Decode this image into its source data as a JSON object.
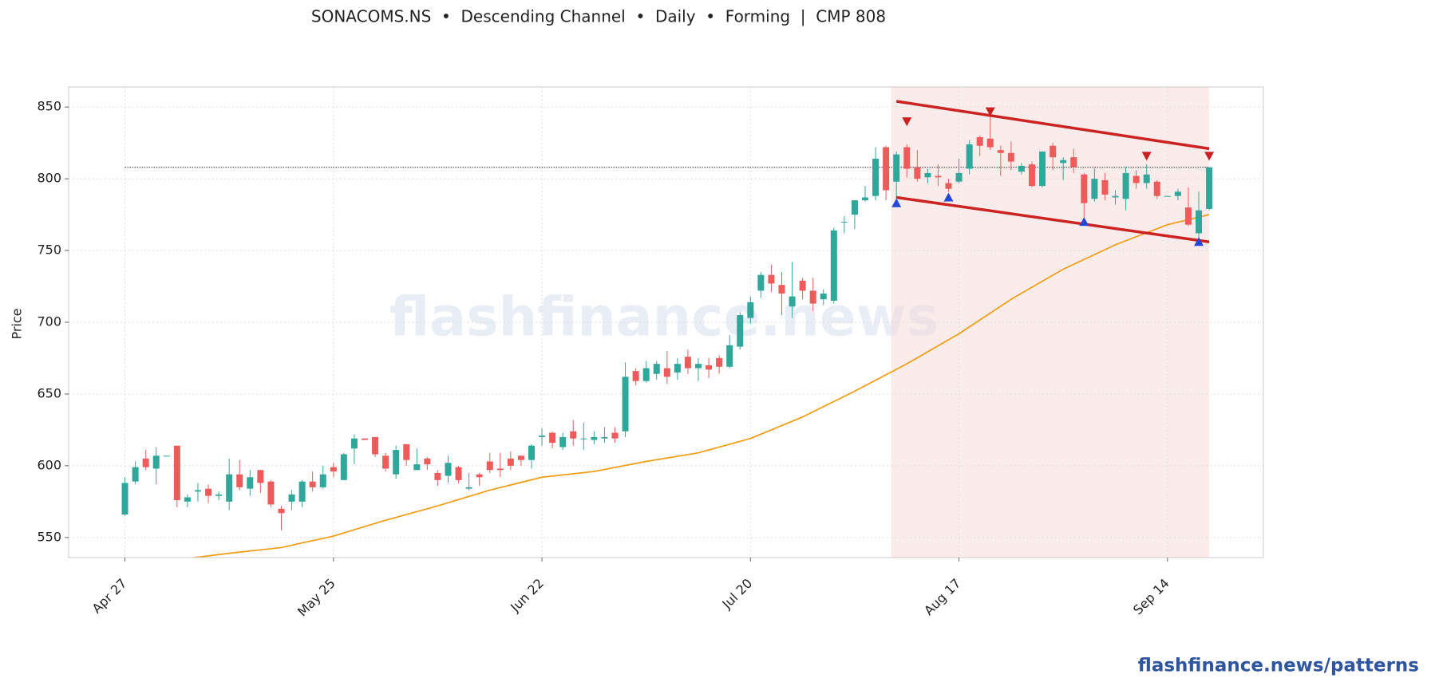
{
  "chart_data": {
    "type": "candlestick",
    "title": "SONACOMS.NS  •  Descending Channel  •  Daily  •  Forming  |  CMP 808",
    "y_label": "Price",
    "watermark": "flashfinance.news",
    "footer": "flashfinance.news/patterns",
    "categories": [
      "Apr 27",
      null,
      null,
      null,
      null,
      null,
      null,
      null,
      null,
      null,
      null,
      null,
      null,
      null,
      null,
      null,
      null,
      null,
      null,
      null,
      "May 25",
      null,
      null,
      null,
      null,
      null,
      null,
      null,
      null,
      null,
      null,
      null,
      null,
      null,
      null,
      null,
      null,
      null,
      null,
      null,
      "Jun 22",
      null,
      null,
      null,
      null,
      null,
      null,
      null,
      null,
      null,
      null,
      null,
      null,
      null,
      null,
      null,
      null,
      null,
      null,
      null,
      "Jul 20",
      null,
      null,
      null,
      null,
      null,
      null,
      null,
      null,
      null,
      null,
      null,
      null,
      null,
      null,
      null,
      null,
      null,
      null,
      null,
      "Aug 17",
      null,
      null,
      null,
      null,
      null,
      null,
      null,
      null,
      null,
      null,
      null,
      null,
      null,
      null,
      null,
      null,
      null,
      null,
      null,
      "Sep 14",
      null,
      null,
      null,
      null
    ],
    "open": [
      566,
      589,
      605,
      598,
      607,
      614,
      575,
      582,
      584,
      579,
      575,
      594,
      584,
      597,
      589,
      570,
      575,
      575,
      589,
      585,
      599,
      590,
      612,
      619,
      620,
      607,
      594,
      615,
      597,
      605,
      595,
      593,
      599,
      584,
      594,
      603,
      598,
      605,
      607,
      604,
      620,
      623,
      613,
      624,
      619,
      618,
      619,
      623,
      624,
      666,
      659,
      664,
      668,
      665,
      676,
      668,
      670,
      675,
      669,
      683,
      703,
      722,
      733,
      726,
      711,
      729,
      722,
      716,
      715,
      770,
      775,
      785,
      788,
      822,
      798,
      822,
      808,
      801,
      802,
      797,
      798,
      807,
      829,
      828,
      820,
      818,
      805,
      810,
      795,
      823,
      811,
      815,
      803,
      786,
      799,
      787,
      786,
      802,
      797,
      798,
      788,
      788,
      780,
      762,
      779
    ],
    "high": [
      592,
      603,
      611,
      613,
      607,
      614,
      580,
      588,
      587,
      582,
      605,
      604,
      597,
      597,
      590,
      572,
      583,
      590,
      596,
      600,
      602,
      609,
      622,
      619,
      620,
      609,
      614,
      615,
      612,
      606,
      597,
      607,
      600,
      595,
      595,
      609,
      609,
      610,
      607,
      615,
      626,
      624,
      623,
      632,
      630,
      624,
      627,
      627,
      672,
      668,
      673,
      673,
      680,
      675,
      681,
      675,
      675,
      677,
      691,
      707,
      718,
      735,
      740,
      735,
      742,
      731,
      731,
      723,
      766,
      774,
      785,
      795,
      822,
      823,
      819,
      824,
      820,
      807,
      810,
      800,
      814,
      827,
      830,
      845,
      823,
      826,
      811,
      812,
      819,
      825,
      815,
      821,
      804,
      807,
      804,
      792,
      808,
      806,
      810,
      799,
      788,
      793,
      794,
      791,
      808
    ],
    "low": [
      565,
      587,
      597,
      587,
      607,
      571,
      571,
      575,
      574,
      576,
      569,
      583,
      579,
      581,
      571,
      555,
      569,
      571,
      582,
      584,
      592,
      590,
      601,
      618,
      606,
      596,
      591,
      600,
      597,
      597,
      586,
      588,
      588,
      583,
      586,
      595,
      592,
      597,
      600,
      598,
      614,
      612,
      611,
      614,
      611,
      615,
      616,
      616,
      620,
      656,
      658,
      660,
      657,
      660,
      664,
      659,
      661,
      664,
      668,
      681,
      699,
      717,
      721,
      705,
      703,
      716,
      708,
      712,
      713,
      762,
      765,
      784,
      785,
      785,
      786,
      801,
      798,
      797,
      795,
      791,
      797,
      803,
      816,
      820,
      802,
      806,
      803,
      794,
      794,
      806,
      799,
      804,
      773,
      784,
      785,
      782,
      778,
      793,
      793,
      786,
      788,
      785,
      767,
      757,
      778
    ],
    "close": [
      588,
      599,
      599,
      607,
      607,
      576,
      578,
      583,
      579,
      580,
      594,
      585,
      592,
      588,
      573,
      567,
      580,
      589,
      585,
      594,
      596,
      608,
      619,
      618,
      608,
      598,
      611,
      604,
      601,
      601,
      590,
      602,
      590,
      585,
      592,
      597,
      597,
      600,
      604,
      614,
      621,
      616,
      620,
      619,
      619,
      620,
      620,
      619,
      662,
      659,
      668,
      671,
      662,
      671,
      668,
      671,
      667,
      669,
      684,
      705,
      714,
      733,
      727,
      720,
      718,
      722,
      713,
      720,
      764,
      770,
      785,
      787,
      814,
      792,
      817,
      807,
      800,
      804,
      801,
      793,
      804,
      824,
      823,
      822,
      818,
      812,
      809,
      795,
      819,
      815,
      813,
      808,
      783,
      800,
      789,
      788,
      804,
      797,
      803,
      788,
      788,
      791,
      768,
      778,
      808
    ],
    "up_color": "#2fa89b",
    "down_color": "#ef5b5b",
    "moving_average": {
      "color": "#f39c12",
      "x": [
        5,
        10,
        15,
        20,
        25,
        30,
        35,
        40,
        45,
        50,
        55,
        60,
        65,
        70,
        75,
        80,
        85,
        90,
        95,
        100,
        104
      ],
      "values": [
        534.5,
        539,
        543,
        551,
        562,
        572,
        583,
        592,
        596,
        603,
        609,
        619,
        634,
        652,
        671,
        692,
        716,
        737,
        754,
        768,
        775
      ]
    },
    "cmp_line": 808,
    "channel": {
      "color": "#cc2222",
      "x": [
        74,
        104
      ],
      "upper": [
        854,
        821
      ],
      "lower": [
        787,
        756
      ]
    },
    "pivot_highs": {
      "color": "#cc1f1f",
      "x": [
        75,
        83,
        98,
        104
      ],
      "values": [
        840,
        847,
        816,
        816
      ]
    },
    "pivot_lows": {
      "color": "#2447d6",
      "x": [
        74,
        79,
        92,
        103
      ],
      "values": [
        783,
        787,
        770,
        756
      ]
    },
    "xlim": [
      -5.4,
      109.2
    ],
    "ylim": [
      536,
      864
    ],
    "yticks": [
      550,
      600,
      650,
      700,
      750,
      800,
      850
    ],
    "grid": true
  }
}
